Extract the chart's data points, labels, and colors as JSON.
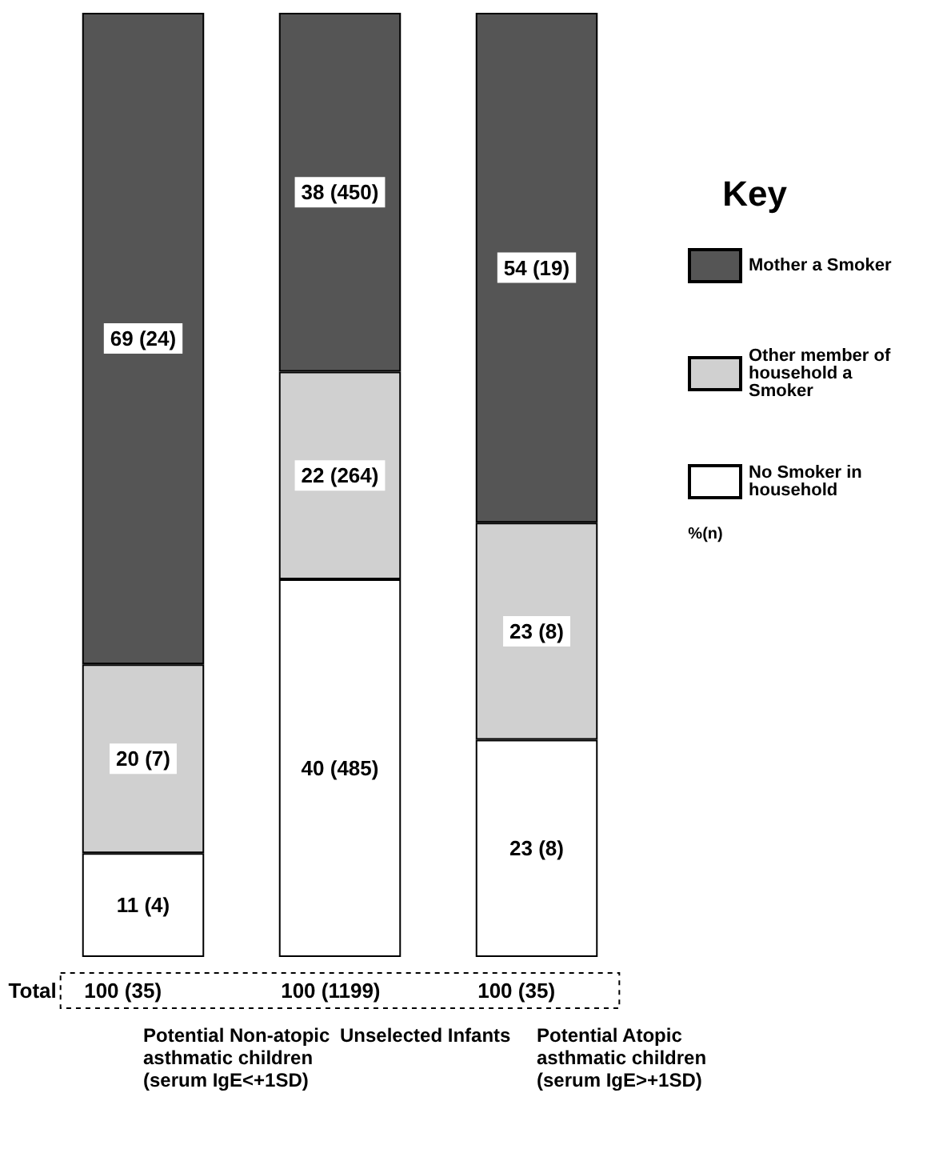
{
  "chart_data": {
    "type": "bar",
    "stacked": true,
    "legend": "right",
    "legend_title": "Key",
    "tick_labels": "x",
    "categories": [
      "Potential Non-atopic asthmatic children (serum IgE<+1SD)",
      "Unselected Infants",
      "Potential Atopic asthmatic children (serum IgE>+1SD)"
    ],
    "series": [
      {
        "name": "No Smoker in household",
        "color": "#ffffff",
        "values": [
          11,
          40,
          23
        ],
        "value_labels": [
          "11 (4)",
          "40 (485)",
          "23 (8)"
        ]
      },
      {
        "name": "Other member of household a Smoker",
        "color": "#d0d0d0",
        "values": [
          20,
          22,
          23
        ],
        "value_labels": [
          "20 (7)",
          "22 (264)",
          "23 (8)"
        ]
      },
      {
        "name": "Mother a Smoker",
        "color": "#555555",
        "values": [
          69,
          38,
          54
        ],
        "value_labels": [
          "69 (24)",
          "38 (450)",
          "54 (19)"
        ]
      }
    ],
    "totals": [
      "100 (35)",
      "100 (1199)",
      "100 (35)"
    ],
    "annotations": [
      "Total",
      "%(n)"
    ]
  }
}
